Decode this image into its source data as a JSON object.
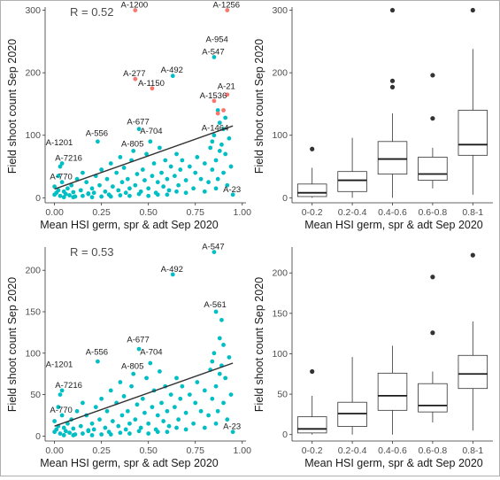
{
  "colors": {
    "point": "#00BFC4",
    "outlier_point": "#F8766D",
    "line": "#333333",
    "box_outlier": "#333333"
  },
  "chart_data": [
    {
      "type": "scatter",
      "annotation": "R = 0.52",
      "xlabel": "Mean HSI germ, spr & adt Sep 2020",
      "ylabel": "Field shoot count Sep 2020",
      "xlim": [
        -0.05,
        1.02
      ],
      "ylim": [
        -8,
        305
      ],
      "xticks": [
        "0.00",
        "0.25",
        "0.50",
        "0.75",
        "1.00"
      ],
      "xtick_values": [
        0,
        0.25,
        0.5,
        0.75,
        1.0
      ],
      "yticks": [
        "0",
        "100",
        "200",
        "300"
      ],
      "ytick_values": [
        0,
        100,
        200,
        300
      ],
      "trend_line": {
        "x": [
          0.0,
          0.95
        ],
        "y": [
          14,
          115
        ]
      },
      "labeled_points": [
        {
          "label": "A-1200",
          "x": 0.43,
          "y": 300,
          "color": "outlier"
        },
        {
          "label": "A-1256",
          "x": 0.92,
          "y": 300,
          "color": "outlier"
        },
        {
          "label": "A-954",
          "x": 0.87,
          "y": 245,
          "color": "normal"
        },
        {
          "label": "A-547",
          "x": 0.85,
          "y": 225,
          "color": "normal"
        },
        {
          "label": "A-277",
          "x": 0.43,
          "y": 190,
          "color": "outlier"
        },
        {
          "label": "A-492",
          "x": 0.63,
          "y": 196,
          "color": "normal"
        },
        {
          "label": "A-1150",
          "x": 0.52,
          "y": 175,
          "color": "outlier"
        },
        {
          "label": "A-21",
          "x": 0.92,
          "y": 170,
          "color": "outlier"
        },
        {
          "label": "A-1536",
          "x": 0.85,
          "y": 155,
          "color": "outlier"
        },
        {
          "label": "A-677",
          "x": 0.45,
          "y": 113,
          "color": "normal"
        },
        {
          "label": "A-1464",
          "x": 0.86,
          "y": 103,
          "color": "normal"
        },
        {
          "label": "A-1201",
          "x": 0.03,
          "y": 80,
          "color": "normal"
        },
        {
          "label": "A-556",
          "x": 0.23,
          "y": 95,
          "color": "normal"
        },
        {
          "label": "A-704",
          "x": 0.52,
          "y": 98,
          "color": "normal"
        },
        {
          "label": "A-805",
          "x": 0.42,
          "y": 78,
          "color": "normal"
        },
        {
          "label": "A-7216",
          "x": 0.08,
          "y": 55,
          "color": "normal"
        },
        {
          "label": "A-770",
          "x": 0.04,
          "y": 25,
          "color": "normal"
        },
        {
          "label": "A-23",
          "x": 0.95,
          "y": 5,
          "color": "normal"
        }
      ],
      "points": [
        [
          0.0,
          5
        ],
        [
          0.01,
          8
        ],
        [
          0.02,
          12
        ],
        [
          0.0,
          18
        ],
        [
          0.03,
          3
        ],
        [
          0.04,
          25
        ],
        [
          0.02,
          35
        ],
        [
          0.05,
          10
        ],
        [
          0.06,
          6
        ],
        [
          0.03,
          50
        ],
        [
          0.04,
          55
        ],
        [
          0.07,
          15
        ],
        [
          0.08,
          4
        ],
        [
          0.09,
          20
        ],
        [
          0.1,
          9
        ],
        [
          0.12,
          30
        ],
        [
          0.11,
          2
        ],
        [
          0.14,
          12
        ],
        [
          0.15,
          40
        ],
        [
          0.17,
          25
        ],
        [
          0.18,
          6
        ],
        [
          0.2,
          15
        ],
        [
          0.22,
          35
        ],
        [
          0.21,
          8
        ],
        [
          0.24,
          20
        ],
        [
          0.25,
          45
        ],
        [
          0.23,
          90
        ],
        [
          0.27,
          10
        ],
        [
          0.28,
          30
        ],
        [
          0.3,
          55
        ],
        [
          0.29,
          5
        ],
        [
          0.31,
          18
        ],
        [
          0.33,
          40
        ],
        [
          0.34,
          12
        ],
        [
          0.35,
          65
        ],
        [
          0.36,
          25
        ],
        [
          0.38,
          8
        ],
        [
          0.37,
          48
        ],
        [
          0.39,
          30
        ],
        [
          0.4,
          15
        ],
        [
          0.41,
          60
        ],
        [
          0.42,
          75
        ],
        [
          0.43,
          20
        ],
        [
          0.44,
          38
        ],
        [
          0.45,
          110
        ],
        [
          0.46,
          10
        ],
        [
          0.47,
          45
        ],
        [
          0.48,
          28
        ],
        [
          0.49,
          70
        ],
        [
          0.5,
          15
        ],
        [
          0.51,
          90
        ],
        [
          0.52,
          35
        ],
        [
          0.53,
          55
        ],
        [
          0.54,
          8
        ],
        [
          0.55,
          25
        ],
        [
          0.56,
          80
        ],
        [
          0.57,
          40
        ],
        [
          0.58,
          18
        ],
        [
          0.59,
          60
        ],
        [
          0.6,
          30
        ],
        [
          0.61,
          12
        ],
        [
          0.62,
          50
        ],
        [
          0.63,
          195
        ],
        [
          0.64,
          35
        ],
        [
          0.65,
          70
        ],
        [
          0.66,
          20
        ],
        [
          0.67,
          45
        ],
        [
          0.68,
          60
        ],
        [
          0.7,
          28
        ],
        [
          0.72,
          50
        ],
        [
          0.74,
          15
        ],
        [
          0.75,
          40
        ],
        [
          0.76,
          65
        ],
        [
          0.78,
          30
        ],
        [
          0.8,
          55
        ],
        [
          0.82,
          25
        ],
        [
          0.83,
          80
        ],
        [
          0.84,
          45
        ],
        [
          0.85,
          225
        ],
        [
          0.85,
          100
        ],
        [
          0.86,
          60
        ],
        [
          0.87,
          30
        ],
        [
          0.88,
          120
        ],
        [
          0.89,
          85
        ],
        [
          0.9,
          40
        ],
        [
          0.91,
          70
        ],
        [
          0.92,
          20
        ],
        [
          0.93,
          95
        ],
        [
          0.94,
          50
        ],
        [
          0.95,
          5
        ],
        [
          0.86,
          15
        ],
        [
          0.88,
          75
        ],
        [
          0.9,
          110
        ],
        [
          0.84,
          90
        ],
        [
          0.87,
          140
        ],
        [
          0.91,
          128
        ],
        [
          0.8,
          10
        ],
        [
          0.15,
          3
        ],
        [
          0.2,
          1
        ],
        [
          0.3,
          2
        ],
        [
          0.5,
          3
        ],
        [
          0.6,
          5
        ],
        [
          0.05,
          1
        ],
        [
          0.1,
          1
        ],
        [
          0.35,
          4
        ],
        [
          0.45,
          6
        ],
        [
          0.25,
          2
        ],
        [
          0.55,
          5
        ],
        [
          0.7,
          8
        ],
        [
          0.65,
          10
        ],
        [
          0.4,
          3
        ],
        [
          0.18,
          7
        ]
      ],
      "outlier_points": [
        [
          0.43,
          300
        ],
        [
          0.92,
          300
        ],
        [
          0.43,
          190
        ],
        [
          0.52,
          175
        ],
        [
          0.92,
          165
        ],
        [
          0.85,
          155
        ],
        [
          0.9,
          140
        ],
        [
          0.87,
          135
        ]
      ]
    },
    {
      "type": "box",
      "xlabel": "Mean HSI germ, spr & adt Sep 2020",
      "ylabel": "Field shoot count Sep 2020",
      "ylim": [
        -8,
        305
      ],
      "yticks": [
        "0",
        "100",
        "200",
        "300"
      ],
      "ytick_values": [
        0,
        100,
        200,
        300
      ],
      "categories": [
        "0-0.2",
        "0.2-0.4",
        "0.4-0.6",
        "0.6-0.8",
        "0.8-1"
      ],
      "boxes": [
        {
          "min": 0,
          "q1": 2,
          "median": 8,
          "q3": 22,
          "max": 48,
          "outliers": [
            78
          ]
        },
        {
          "min": 0,
          "q1": 10,
          "median": 28,
          "q3": 42,
          "max": 96,
          "outliers": []
        },
        {
          "min": 0,
          "q1": 38,
          "median": 62,
          "q3": 90,
          "max": 135,
          "outliers": [
            177,
            187,
            300
          ]
        },
        {
          "min": 15,
          "q1": 28,
          "median": 38,
          "q3": 65,
          "max": 80,
          "outliers": [
            127,
            196
          ]
        },
        {
          "min": 5,
          "q1": 68,
          "median": 85,
          "q3": 140,
          "max": 238,
          "outliers": [
            300
          ]
        }
      ]
    },
    {
      "type": "scatter",
      "annotation": "R = 0.53",
      "xlabel": "Mean HSI germ, spr & adt Sep 2020",
      "ylabel": "Field shoot count Sep 2020",
      "xlim": [
        -0.05,
        1.02
      ],
      "ylim": [
        -6,
        228
      ],
      "xticks": [
        "0.00",
        "0.25",
        "0.50",
        "0.75",
        "1.00"
      ],
      "xtick_values": [
        0,
        0.25,
        0.5,
        0.75,
        1.0
      ],
      "yticks": [
        "0",
        "50",
        "100",
        "150",
        "200"
      ],
      "ytick_values": [
        0,
        50,
        100,
        150,
        200
      ],
      "trend_line": {
        "x": [
          0.0,
          0.95
        ],
        "y": [
          12,
          88
        ]
      },
      "labeled_points": [
        {
          "label": "A-547",
          "x": 0.85,
          "y": 222
        },
        {
          "label": "A-492",
          "x": 0.63,
          "y": 195
        },
        {
          "label": "A-561",
          "x": 0.86,
          "y": 152
        },
        {
          "label": "A-677",
          "x": 0.45,
          "y": 110
        },
        {
          "label": "A-556",
          "x": 0.23,
          "y": 95
        },
        {
          "label": "A-704",
          "x": 0.52,
          "y": 95
        },
        {
          "label": "A-805",
          "x": 0.42,
          "y": 78
        },
        {
          "label": "A-1201",
          "x": 0.03,
          "y": 80
        },
        {
          "label": "A-7216",
          "x": 0.08,
          "y": 55
        },
        {
          "label": "A-770",
          "x": 0.04,
          "y": 25
        },
        {
          "label": "A-23",
          "x": 0.95,
          "y": 5
        }
      ],
      "points": [
        [
          0.0,
          5
        ],
        [
          0.01,
          8
        ],
        [
          0.02,
          12
        ],
        [
          0.0,
          18
        ],
        [
          0.03,
          3
        ],
        [
          0.04,
          25
        ],
        [
          0.02,
          35
        ],
        [
          0.05,
          10
        ],
        [
          0.06,
          6
        ],
        [
          0.03,
          50
        ],
        [
          0.04,
          55
        ],
        [
          0.07,
          15
        ],
        [
          0.08,
          4
        ],
        [
          0.09,
          20
        ],
        [
          0.1,
          9
        ],
        [
          0.12,
          30
        ],
        [
          0.11,
          2
        ],
        [
          0.14,
          12
        ],
        [
          0.15,
          40
        ],
        [
          0.17,
          25
        ],
        [
          0.18,
          6
        ],
        [
          0.2,
          15
        ],
        [
          0.22,
          35
        ],
        [
          0.21,
          8
        ],
        [
          0.24,
          20
        ],
        [
          0.25,
          45
        ],
        [
          0.23,
          90
        ],
        [
          0.27,
          10
        ],
        [
          0.28,
          30
        ],
        [
          0.3,
          55
        ],
        [
          0.29,
          5
        ],
        [
          0.31,
          18
        ],
        [
          0.33,
          40
        ],
        [
          0.34,
          12
        ],
        [
          0.35,
          65
        ],
        [
          0.36,
          25
        ],
        [
          0.38,
          8
        ],
        [
          0.37,
          48
        ],
        [
          0.39,
          30
        ],
        [
          0.4,
          15
        ],
        [
          0.41,
          60
        ],
        [
          0.42,
          75
        ],
        [
          0.43,
          20
        ],
        [
          0.44,
          38
        ],
        [
          0.45,
          105
        ],
        [
          0.46,
          10
        ],
        [
          0.47,
          45
        ],
        [
          0.48,
          28
        ],
        [
          0.49,
          70
        ],
        [
          0.5,
          15
        ],
        [
          0.51,
          88
        ],
        [
          0.52,
          35
        ],
        [
          0.53,
          55
        ],
        [
          0.54,
          8
        ],
        [
          0.55,
          25
        ],
        [
          0.56,
          78
        ],
        [
          0.57,
          40
        ],
        [
          0.58,
          18
        ],
        [
          0.59,
          60
        ],
        [
          0.6,
          30
        ],
        [
          0.61,
          12
        ],
        [
          0.62,
          50
        ],
        [
          0.63,
          195
        ],
        [
          0.64,
          35
        ],
        [
          0.65,
          70
        ],
        [
          0.66,
          20
        ],
        [
          0.67,
          45
        ],
        [
          0.68,
          60
        ],
        [
          0.7,
          28
        ],
        [
          0.72,
          50
        ],
        [
          0.74,
          15
        ],
        [
          0.75,
          40
        ],
        [
          0.76,
          65
        ],
        [
          0.78,
          30
        ],
        [
          0.8,
          55
        ],
        [
          0.82,
          25
        ],
        [
          0.83,
          80
        ],
        [
          0.84,
          45
        ],
        [
          0.85,
          222
        ],
        [
          0.85,
          100
        ],
        [
          0.86,
          60
        ],
        [
          0.87,
          30
        ],
        [
          0.88,
          118
        ],
        [
          0.89,
          85
        ],
        [
          0.9,
          40
        ],
        [
          0.91,
          70
        ],
        [
          0.92,
          20
        ],
        [
          0.93,
          95
        ],
        [
          0.94,
          50
        ],
        [
          0.95,
          5
        ],
        [
          0.86,
          15
        ],
        [
          0.88,
          75
        ],
        [
          0.9,
          110
        ],
        [
          0.84,
          90
        ],
        [
          0.86,
          150
        ],
        [
          0.89,
          140
        ],
        [
          0.8,
          10
        ],
        [
          0.15,
          3
        ],
        [
          0.2,
          1
        ],
        [
          0.3,
          2
        ],
        [
          0.5,
          3
        ],
        [
          0.6,
          5
        ],
        [
          0.05,
          1
        ],
        [
          0.1,
          1
        ],
        [
          0.35,
          4
        ],
        [
          0.45,
          6
        ],
        [
          0.25,
          2
        ],
        [
          0.55,
          5
        ],
        [
          0.7,
          8
        ],
        [
          0.65,
          10
        ],
        [
          0.4,
          3
        ],
        [
          0.18,
          7
        ]
      ],
      "outlier_points": []
    },
    {
      "type": "box",
      "xlabel": "Mean HSI germ, spr & adt Sep 2020",
      "ylabel": "Field shoot count Sep 2020",
      "ylim": [
        -8,
        232
      ],
      "yticks": [
        "0",
        "50",
        "100",
        "150",
        "200"
      ],
      "ytick_values": [
        0,
        50,
        100,
        150,
        200
      ],
      "categories": [
        "0-0.2",
        "0.2-0.4",
        "0.4-0.6",
        "0.6-0.8",
        "0.8-1"
      ],
      "boxes": [
        {
          "min": 0,
          "q1": 2,
          "median": 7,
          "q3": 22,
          "max": 48,
          "outliers": [
            78
          ]
        },
        {
          "min": 0,
          "q1": 10,
          "median": 26,
          "q3": 40,
          "max": 96,
          "outliers": []
        },
        {
          "min": 0,
          "q1": 30,
          "median": 48,
          "q3": 76,
          "max": 110,
          "outliers": []
        },
        {
          "min": 15,
          "q1": 28,
          "median": 36,
          "q3": 63,
          "max": 78,
          "outliers": [
            126,
            195
          ]
        },
        {
          "min": 5,
          "q1": 57,
          "median": 75,
          "q3": 98,
          "max": 140,
          "outliers": [
            222
          ]
        }
      ]
    }
  ]
}
